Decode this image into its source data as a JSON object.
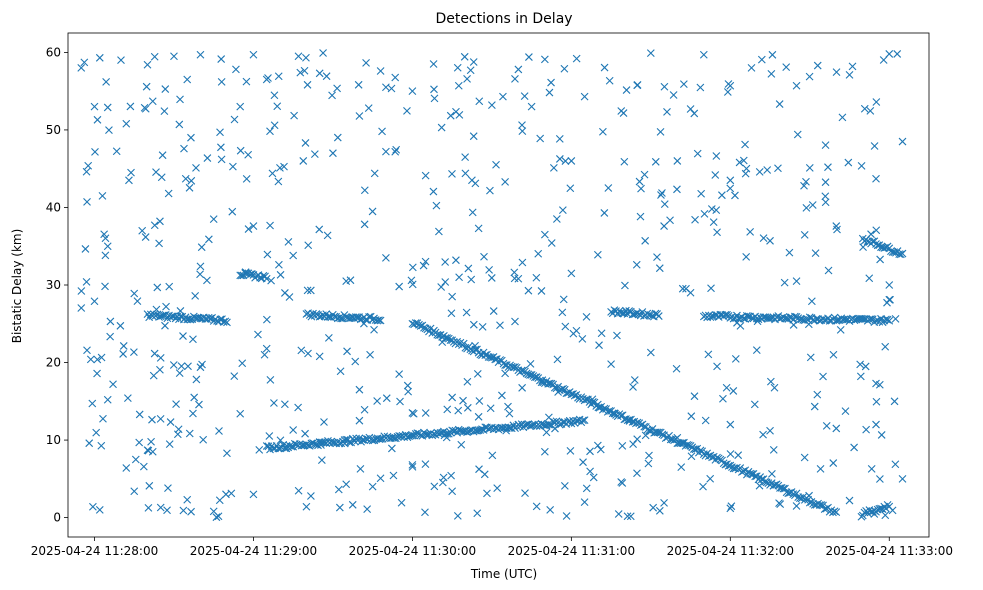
{
  "chart_data": {
    "type": "scatter",
    "title": "Detections in Delay",
    "xlabel": "Time (UTC)",
    "ylabel": "Bistatic Delay (km)",
    "marker": "x",
    "color": "#1f77b4",
    "x_start": "2025-04-24 11:28:00",
    "xlim": [
      "2025-04-24 11:27:50",
      "2025-04-24 11:33:15"
    ],
    "ylim": [
      -2.5,
      62.5
    ],
    "x_ticks": [
      "2025-04-24 11:28:00",
      "2025-04-24 11:29:00",
      "2025-04-24 11:30:00",
      "2025-04-24 11:31:00",
      "2025-04-24 11:32:00",
      "2025-04-24 11:33:00"
    ],
    "y_ticks": [
      0,
      10,
      20,
      30,
      40,
      50,
      60
    ],
    "grid": false,
    "tracks": [
      {
        "x": [
          "2025-04-24 11:28:20",
          "2025-04-24 11:28:50"
        ],
        "y": [
          26.1,
          25.4
        ]
      },
      {
        "x": [
          "2025-04-24 11:29:20",
          "2025-04-24 11:29:48"
        ],
        "y": [
          26.2,
          25.6
        ]
      },
      {
        "x": [
          "2025-04-24 11:28:55",
          "2025-04-24 11:29:05"
        ],
        "y": [
          31.4,
          31.0
        ]
      },
      {
        "x": [
          "2025-04-24 11:29:05",
          "2025-04-24 11:31:05"
        ],
        "y": [
          9.0,
          12.5
        ]
      },
      {
        "x": [
          "2025-04-24 11:30:00",
          "2025-04-24 11:32:40"
        ],
        "y": [
          25.2,
          0.6
        ]
      },
      {
        "x": [
          "2025-04-24 11:31:50",
          "2025-04-24 11:33:00"
        ],
        "y": [
          26.0,
          25.4
        ]
      },
      {
        "x": [
          "2025-04-24 11:32:50",
          "2025-04-24 11:33:05"
        ],
        "y": [
          36.0,
          34.0
        ]
      },
      {
        "x": [
          "2025-04-24 11:32:50",
          "2025-04-24 11:33:00"
        ],
        "y": [
          0.5,
          1.5
        ]
      },
      {
        "x": [
          "2025-04-24 11:31:15",
          "2025-04-24 11:31:33"
        ],
        "y": [
          26.6,
          26.1
        ]
      }
    ],
    "scattered_detections": [
      [
        "2025-04-24 11:27:55",
        58.0
      ],
      [
        "2025-04-24 11:28:02",
        59.3
      ],
      [
        "2025-04-24 11:28:10",
        59.0
      ],
      [
        "2025-04-24 11:28:20",
        58.4
      ],
      [
        "2025-04-24 11:28:30",
        59.5
      ],
      [
        "2025-04-24 11:28:40",
        59.7
      ],
      [
        "2025-04-24 11:28:48",
        56.2
      ],
      [
        "2025-04-24 11:29:00",
        59.7
      ],
      [
        "2025-04-24 11:29:05",
        56.5
      ],
      [
        "2025-04-24 11:29:17",
        59.5
      ],
      [
        "2025-04-24 11:29:25",
        57.3
      ],
      [
        "2025-04-24 11:29:48",
        57.6
      ],
      [
        "2025-04-24 11:30:08",
        58.5
      ],
      [
        "2025-04-24 11:30:22",
        57.7
      ],
      [
        "2025-04-24 11:30:40",
        57.8
      ],
      [
        "2025-04-24 11:30:50",
        59.1
      ],
      [
        "2025-04-24 11:31:02",
        59.2
      ],
      [
        "2025-04-24 11:31:30",
        59.9
      ],
      [
        "2025-04-24 11:31:50",
        59.7
      ],
      [
        "2025-04-24 11:32:08",
        58.0
      ],
      [
        "2025-04-24 11:32:33",
        58.3
      ],
      [
        "2025-04-24 11:32:45",
        57.1
      ],
      [
        "2025-04-24 11:33:00",
        59.8
      ],
      [
        "2025-04-24 11:33:03",
        59.8
      ],
      [
        "2025-04-24 11:28:00",
        53.0
      ],
      [
        "2025-04-24 11:28:05",
        52.9
      ],
      [
        "2025-04-24 11:28:12",
        50.8
      ],
      [
        "2025-04-24 11:28:22",
        53.7
      ],
      [
        "2025-04-24 11:28:35",
        56.5
      ],
      [
        "2025-04-24 11:28:55",
        53.0
      ],
      [
        "2025-04-24 11:29:08",
        50.6
      ],
      [
        "2025-04-24 11:29:40",
        51.8
      ],
      [
        "2025-04-24 11:29:50",
        55.5
      ],
      [
        "2025-04-24 11:30:00",
        55.0
      ],
      [
        "2025-04-24 11:30:30",
        53.2
      ],
      [
        "2025-04-24 11:30:45",
        53.0
      ],
      [
        "2025-04-24 11:31:05",
        54.3
      ],
      [
        "2025-04-24 11:31:25",
        55.8
      ],
      [
        "2025-04-24 11:31:45",
        52.7
      ],
      [
        "2025-04-24 11:32:00",
        55.7
      ],
      [
        "2025-04-24 11:32:25",
        55.7
      ],
      [
        "2025-04-24 11:33:05",
        48.5
      ],
      [
        "2025-04-24 11:27:57",
        44.6
      ],
      [
        "2025-04-24 11:28:03",
        41.5
      ],
      [
        "2025-04-24 11:28:13",
        43.5
      ],
      [
        "2025-04-24 11:28:28",
        41.8
      ],
      [
        "2025-04-24 11:28:45",
        38.5
      ],
      [
        "2025-04-24 11:28:58",
        46.8
      ],
      [
        "2025-04-24 11:29:10",
        45.1
      ],
      [
        "2025-04-24 11:29:30",
        47.0
      ],
      [
        "2025-04-24 11:29:50",
        47.2
      ],
      [
        "2025-04-24 11:30:05",
        44.1
      ],
      [
        "2025-04-24 11:30:20",
        44.4
      ],
      [
        "2025-04-24 11:30:35",
        43.3
      ],
      [
        "2025-04-24 11:31:00",
        46.0
      ],
      [
        "2025-04-24 11:31:20",
        45.9
      ],
      [
        "2025-04-24 11:31:40",
        46.0
      ],
      [
        "2025-04-24 11:32:00",
        43.5
      ],
      [
        "2025-04-24 11:32:30",
        45.1
      ],
      [
        "2025-04-24 11:32:55",
        43.7
      ],
      [
        "2025-04-24 11:28:05",
        35.0
      ],
      [
        "2025-04-24 11:28:18",
        37.0
      ],
      [
        "2025-04-24 11:28:40",
        32.4
      ],
      [
        "2025-04-24 11:29:00",
        37.6
      ],
      [
        "2025-04-24 11:29:15",
        33.8
      ],
      [
        "2025-04-24 11:29:28",
        36.4
      ],
      [
        "2025-04-24 11:29:50",
        33.5
      ],
      [
        "2025-04-24 11:30:10",
        36.9
      ],
      [
        "2025-04-24 11:30:25",
        37.3
      ],
      [
        "2025-04-24 11:30:50",
        36.5
      ],
      [
        "2025-04-24 11:31:10",
        33.9
      ],
      [
        "2025-04-24 11:31:35",
        37.6
      ],
      [
        "2025-04-24 11:31:55",
        36.8
      ],
      [
        "2025-04-24 11:32:15",
        35.7
      ],
      [
        "2025-04-24 11:32:40",
        37.6
      ],
      [
        "2025-04-24 11:27:57",
        30.4
      ],
      [
        "2025-04-24 11:28:00",
        27.9
      ],
      [
        "2025-04-24 11:28:06",
        25.3
      ],
      [
        "2025-04-24 11:28:15",
        28.9
      ],
      [
        "2025-04-24 11:28:38",
        28.6
      ],
      [
        "2025-04-24 11:29:35",
        30.5
      ],
      [
        "2025-04-24 11:29:55",
        29.8
      ],
      [
        "2025-04-24 11:30:15",
        28.5
      ],
      [
        "2025-04-24 11:30:40",
        30.8
      ],
      [
        "2025-04-24 11:31:00",
        31.5
      ],
      [
        "2025-04-24 11:31:45",
        29.0
      ],
      [
        "2025-04-24 11:32:25",
        30.5
      ],
      [
        "2025-04-24 11:33:00",
        30.0
      ],
      [
        "2025-04-24 11:33:00",
        28.1
      ],
      [
        "2025-04-24 11:27:58",
        9.6
      ],
      [
        "2025-04-24 11:28:07",
        17.2
      ],
      [
        "2025-04-24 11:28:12",
        6.4
      ],
      [
        "2025-04-24 11:28:25",
        20.6
      ],
      [
        "2025-04-24 11:28:40",
        19.4
      ],
      [
        "2025-04-24 11:28:55",
        13.4
      ],
      [
        "2025-04-24 11:29:05",
        21.8
      ],
      [
        "2025-04-24 11:29:25",
        20.8
      ],
      [
        "2025-04-24 11:29:40",
        16.5
      ],
      [
        "2025-04-24 11:29:55",
        18.5
      ],
      [
        "2025-04-24 11:30:15",
        15.5
      ],
      [
        "2025-04-24 11:30:35",
        18.6
      ],
      [
        "2025-04-24 11:30:55",
        16.2
      ],
      [
        "2025-04-24 11:31:15",
        19.8
      ],
      [
        "2025-04-24 11:31:30",
        21.3
      ],
      [
        "2025-04-24 11:31:55",
        19.5
      ],
      [
        "2025-04-24 11:32:10",
        21.6
      ],
      [
        "2025-04-24 11:32:35",
        18.2
      ],
      [
        "2025-04-24 11:32:55",
        17.3
      ],
      [
        "2025-04-24 11:28:02",
        1.0
      ],
      [
        "2025-04-24 11:28:05",
        15.2
      ],
      [
        "2025-04-24 11:28:15",
        3.4
      ],
      [
        "2025-04-24 11:28:25",
        1.3
      ],
      [
        "2025-04-24 11:28:35",
        2.3
      ],
      [
        "2025-04-24 11:28:45",
        0.8
      ],
      [
        "2025-04-24 11:29:00",
        3.0
      ],
      [
        "2025-04-24 11:29:20",
        1.4
      ],
      [
        "2025-04-24 11:29:35",
        4.3
      ],
      [
        "2025-04-24 11:29:45",
        4.0
      ],
      [
        "2025-04-24 11:30:00",
        6.8
      ],
      [
        "2025-04-24 11:30:15",
        3.4
      ],
      [
        "2025-04-24 11:30:32",
        3.8
      ],
      [
        "2025-04-24 11:30:52",
        1.0
      ],
      [
        "2025-04-24 11:31:05",
        2.0
      ],
      [
        "2025-04-24 11:31:35",
        1.9
      ],
      [
        "2025-04-24 11:32:00",
        1.2
      ],
      [
        "2025-04-24 11:32:25",
        1.5
      ],
      [
        "2025-04-24 11:32:45",
        2.2
      ],
      [
        "2025-04-24 11:33:05",
        5.0
      ],
      [
        "2025-04-24 11:28:20",
        8.7
      ],
      [
        "2025-04-24 11:28:50",
        8.3
      ],
      [
        "2025-04-24 11:29:15",
        11.3
      ],
      [
        "2025-04-24 11:29:40",
        12.5
      ],
      [
        "2025-04-24 11:30:00",
        13.5
      ],
      [
        "2025-04-24 11:30:25",
        13.0
      ],
      [
        "2025-04-24 11:30:50",
        8.5
      ],
      [
        "2025-04-24 11:31:10",
        9.3
      ],
      [
        "2025-04-24 11:31:40",
        10.3
      ],
      [
        "2025-04-24 11:32:00",
        12.0
      ],
      [
        "2025-04-24 11:32:15",
        11.2
      ],
      [
        "2025-04-24 11:32:40",
        11.5
      ],
      [
        "2025-04-24 11:32:55",
        12.0
      ],
      [
        "2025-04-24 11:33:02",
        15.0
      ]
    ]
  }
}
